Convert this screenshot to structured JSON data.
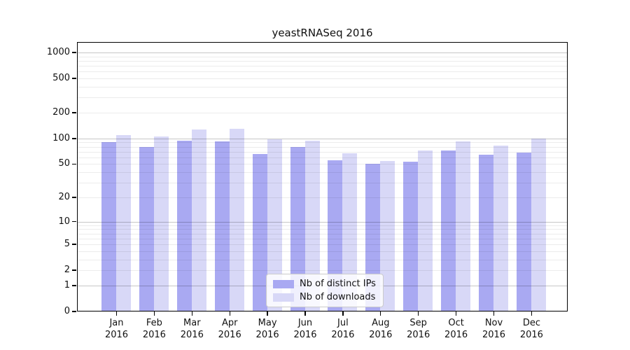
{
  "title": "yeastRNASeq 2016",
  "colors": {
    "ips_bar": "#a9a9f2",
    "downloads_bar": "#d8d8f7",
    "grid_major": "#c7c7c7",
    "grid_minor": "#ececec",
    "axis": "#000000"
  },
  "legend": {
    "items": [
      {
        "label": "Nb of distinct IPs",
        "series": "ips"
      },
      {
        "label": "Nb of downloads",
        "series": "downloads"
      }
    ]
  },
  "chart_data": {
    "type": "bar",
    "title": "yeastRNASeq 2016",
    "categories": [
      "Jan 2016",
      "Feb 2016",
      "Mar 2016",
      "Apr 2016",
      "May 2016",
      "Jun 2016",
      "Jul 2016",
      "Aug 2016",
      "Sep 2016",
      "Oct 2016",
      "Nov 2016",
      "Dec 2016"
    ],
    "series": [
      {
        "name": "Nb of distinct IPs",
        "color": "#a9a9f2",
        "values": [
          91,
          79,
          95,
          93,
          66,
          79,
          56,
          50,
          53,
          72,
          64,
          68
        ]
      },
      {
        "name": "Nb of downloads",
        "color": "#d8d8f7",
        "values": [
          110,
          106,
          127,
          130,
          98,
          94,
          67,
          54,
          72,
          93,
          82,
          99
        ]
      }
    ],
    "xlabel": "",
    "ylabel": "",
    "yscale": "log1p",
    "yticks": [
      0,
      1,
      2,
      5,
      10,
      20,
      50,
      100,
      200,
      500,
      1000
    ],
    "ylim": [
      0,
      1300
    ],
    "grid": true,
    "legend_position": "inside-bottom-center"
  }
}
